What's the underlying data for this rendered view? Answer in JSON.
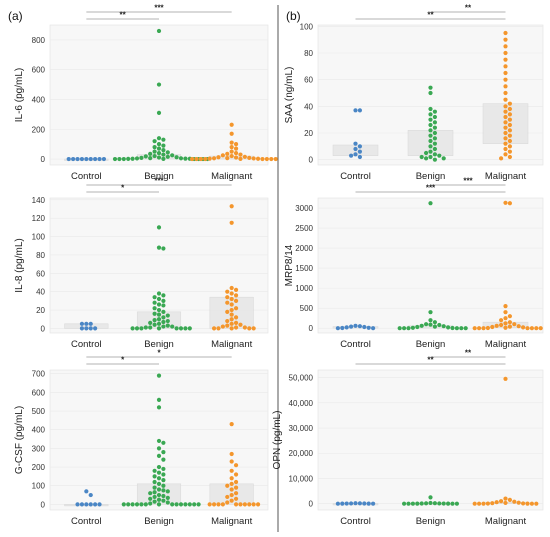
{
  "panel_labels": [
    "(a)",
    "(b)"
  ],
  "colors": {
    "Control": "#4a86c5",
    "Benign": "#3aa853",
    "Malignant": "#f4962c"
  },
  "chart_data": [
    {
      "id": "il6",
      "type": "scatter",
      "ylabel": "IL-6 (pg/mL)",
      "categories": [
        "Control",
        "Benign",
        "Malignant"
      ],
      "ylim": [
        -40,
        900
      ],
      "yticks": [
        0,
        200,
        400,
        600,
        800
      ],
      "ytick_labels": [
        "0",
        "200",
        "400",
        "600",
        "800"
      ],
      "significance": [
        {
          "from": "Control",
          "to": "Malignant",
          "label": "***"
        },
        {
          "from": "Control",
          "to": "Benign",
          "label": "**"
        }
      ],
      "points": {
        "Control": [
          0,
          0,
          0,
          0,
          0,
          0,
          0,
          0,
          0
        ],
        "Benign": [
          860,
          500,
          310,
          140,
          130,
          120,
          100,
          90,
          80,
          70,
          60,
          50,
          45,
          40,
          35,
          30,
          25,
          20,
          18,
          15,
          12,
          10,
          8,
          6,
          5,
          4,
          3,
          2,
          2,
          1,
          1,
          0,
          0,
          0,
          0,
          0,
          0,
          0
        ],
        "Malignant": [
          230,
          170,
          110,
          100,
          80,
          70,
          50,
          40,
          35,
          30,
          25,
          20,
          15,
          12,
          10,
          8,
          6,
          5,
          4,
          3,
          2,
          1,
          0,
          0,
          0,
          0,
          0,
          0,
          0,
          0
        ]
      },
      "box": {
        "Control": [
          0,
          0
        ],
        "Benign": [
          0,
          30
        ],
        "Malignant": [
          0,
          20
        ]
      }
    },
    {
      "id": "il8",
      "type": "scatter",
      "ylabel": "IL-8 (pg/mL)",
      "categories": [
        "Control",
        "Benign",
        "Malignant"
      ],
      "ylim": [
        -5,
        142
      ],
      "yticks": [
        0,
        20,
        40,
        60,
        80,
        100,
        120,
        140
      ],
      "ytick_labels": [
        "0",
        "20",
        "40",
        "60",
        "80",
        "100",
        "120",
        "140"
      ],
      "significance": [
        {
          "from": "Control",
          "to": "Malignant",
          "label": "***"
        },
        {
          "from": "Control",
          "to": "Benign",
          "label": "*"
        }
      ],
      "points": {
        "Control": [
          5,
          5,
          5,
          0,
          0,
          0,
          0
        ],
        "Benign": [
          110,
          88,
          87,
          38,
          36,
          34,
          32,
          30,
          28,
          26,
          25,
          22,
          20,
          18,
          16,
          15,
          14,
          12,
          10,
          9,
          8,
          7,
          6,
          5,
          4,
          3,
          2,
          2,
          1,
          1,
          0,
          0,
          0,
          0,
          0,
          0,
          0,
          0
        ],
        "Malignant": [
          133,
          115,
          44,
          42,
          40,
          38,
          36,
          34,
          32,
          30,
          28,
          26,
          22,
          20,
          18,
          15,
          12,
          10,
          8,
          6,
          5,
          4,
          3,
          2,
          1,
          1,
          0,
          0,
          0,
          0,
          0
        ]
      },
      "box": {
        "Control": [
          0,
          5
        ],
        "Benign": [
          0,
          18
        ],
        "Malignant": [
          0,
          34
        ]
      }
    },
    {
      "id": "gcsf",
      "type": "scatter",
      "ylabel": "G-CSF (pg/mL)",
      "categories": [
        "Control",
        "Benign",
        "Malignant"
      ],
      "ylim": [
        -30,
        720
      ],
      "yticks": [
        0,
        100,
        200,
        300,
        400,
        500,
        600,
        700
      ],
      "ytick_labels": [
        "0",
        "100",
        "200",
        "300",
        "400",
        "500",
        "600",
        "700"
      ],
      "significance": [
        {
          "from": "Control",
          "to": "Malignant",
          "label": "*"
        },
        {
          "from": "Control",
          "to": "Benign",
          "label": "*"
        }
      ],
      "points": {
        "Control": [
          70,
          50,
          0,
          0,
          0,
          0,
          0,
          0
        ],
        "Benign": [
          690,
          560,
          520,
          340,
          330,
          300,
          280,
          260,
          240,
          200,
          190,
          180,
          170,
          160,
          150,
          140,
          130,
          120,
          110,
          100,
          90,
          80,
          75,
          70,
          65,
          60,
          50,
          45,
          40,
          35,
          30,
          25,
          20,
          15,
          10,
          5,
          0,
          0,
          0,
          0,
          0,
          0,
          0,
          0,
          0,
          0,
          0,
          0,
          0,
          0
        ],
        "Malignant": [
          430,
          270,
          230,
          210,
          180,
          160,
          140,
          120,
          110,
          100,
          90,
          80,
          60,
          50,
          40,
          30,
          20,
          10,
          0,
          0,
          0,
          0,
          0,
          0,
          0,
          0,
          0,
          0
        ]
      },
      "box": {
        "Control": [
          0,
          0
        ],
        "Benign": [
          0,
          110
        ],
        "Malignant": [
          0,
          110
        ]
      }
    },
    {
      "id": "saa",
      "type": "scatter",
      "ylabel": "SAA (ng/mL)",
      "categories": [
        "Control",
        "Benign",
        "Malignant"
      ],
      "ylim": [
        -4,
        101
      ],
      "yticks": [
        0,
        20,
        40,
        60,
        80,
        100
      ],
      "ytick_labels": [
        "0",
        "20",
        "40",
        "60",
        "80",
        "100"
      ],
      "significance": [
        {
          "from": "Benign",
          "to": "Malignant",
          "label": "**"
        },
        {
          "from": "Control",
          "to": "Malignant",
          "label": "**"
        }
      ],
      "points": {
        "Control": [
          37,
          37,
          12,
          10,
          8,
          6,
          4,
          3,
          2
        ],
        "Benign": [
          54,
          50,
          38,
          36,
          34,
          32,
          30,
          28,
          26,
          24,
          22,
          20,
          18,
          16,
          14,
          12,
          10,
          8,
          6,
          5,
          4,
          3,
          2,
          2,
          1,
          1,
          0
        ],
        "Malignant": [
          95,
          90,
          85,
          80,
          75,
          70,
          65,
          60,
          55,
          50,
          45,
          42,
          40,
          38,
          36,
          34,
          32,
          30,
          28,
          26,
          24,
          22,
          20,
          18,
          16,
          14,
          12,
          10,
          8,
          6,
          4,
          2,
          1
        ]
      },
      "box": {
        "Control": [
          3,
          11
        ],
        "Benign": [
          3,
          22
        ],
        "Malignant": [
          12,
          42
        ]
      }
    },
    {
      "id": "mrp",
      "type": "scatter",
      "ylabel": "MRP8/14",
      "categories": [
        "Control",
        "Benign",
        "Malignant"
      ],
      "ylim": [
        -120,
        3250
      ],
      "yticks": [
        0,
        500,
        1000,
        1500,
        2000,
        2500,
        3000
      ],
      "ytick_labels": [
        "0",
        "500",
        "1000",
        "1500",
        "2000",
        "2500",
        "3000"
      ],
      "significance": [
        {
          "from": "Benign",
          "to": "Malignant",
          "label": "***"
        },
        {
          "from": "Control",
          "to": "Malignant",
          "label": "***"
        }
      ],
      "points": {
        "Control": [
          60,
          50,
          40,
          30,
          20,
          10,
          5,
          0,
          0
        ],
        "Benign": [
          3120,
          400,
          200,
          150,
          100,
          90,
          80,
          60,
          50,
          40,
          30,
          20,
          10,
          5,
          0,
          0,
          0,
          0,
          0,
          0
        ],
        "Malignant": [
          3130,
          3120,
          550,
          400,
          300,
          250,
          200,
          150,
          120,
          100,
          80,
          60,
          50,
          40,
          30,
          20,
          10,
          5,
          0,
          0,
          0,
          0,
          0,
          0,
          0
        ]
      },
      "box": {
        "Control": [
          0,
          40
        ],
        "Benign": [
          0,
          60
        ],
        "Malignant": [
          10,
          150
        ]
      }
    },
    {
      "id": "opn",
      "type": "scatter",
      "ylabel": "OPN (pg/mL)",
      "categories": [
        "Control",
        "Benign",
        "Malignant"
      ],
      "ylim": [
        -2500,
        53000
      ],
      "yticks": [
        0,
        10000,
        20000,
        30000,
        40000,
        50000
      ],
      "ytick_labels": [
        "0",
        "10,000",
        "20,000",
        "30,000",
        "40,000",
        "50,000"
      ],
      "significance": [
        {
          "from": "Benign",
          "to": "Malignant",
          "label": "**"
        },
        {
          "from": "Control",
          "to": "Malignant",
          "label": "**"
        }
      ],
      "points": {
        "Control": [
          200,
          150,
          100,
          80,
          60,
          40,
          20,
          10,
          0
        ],
        "Benign": [
          2500,
          300,
          200,
          150,
          100,
          80,
          60,
          40,
          20,
          10,
          0,
          0,
          0,
          0
        ],
        "Malignant": [
          49500,
          2000,
          1500,
          1000,
          800,
          600,
          400,
          300,
          200,
          100,
          50,
          20,
          0,
          0,
          0,
          0,
          0
        ]
      },
      "box": {
        "Control": [
          0,
          100
        ],
        "Benign": [
          0,
          150
        ],
        "Malignant": [
          0,
          600
        ]
      }
    }
  ]
}
